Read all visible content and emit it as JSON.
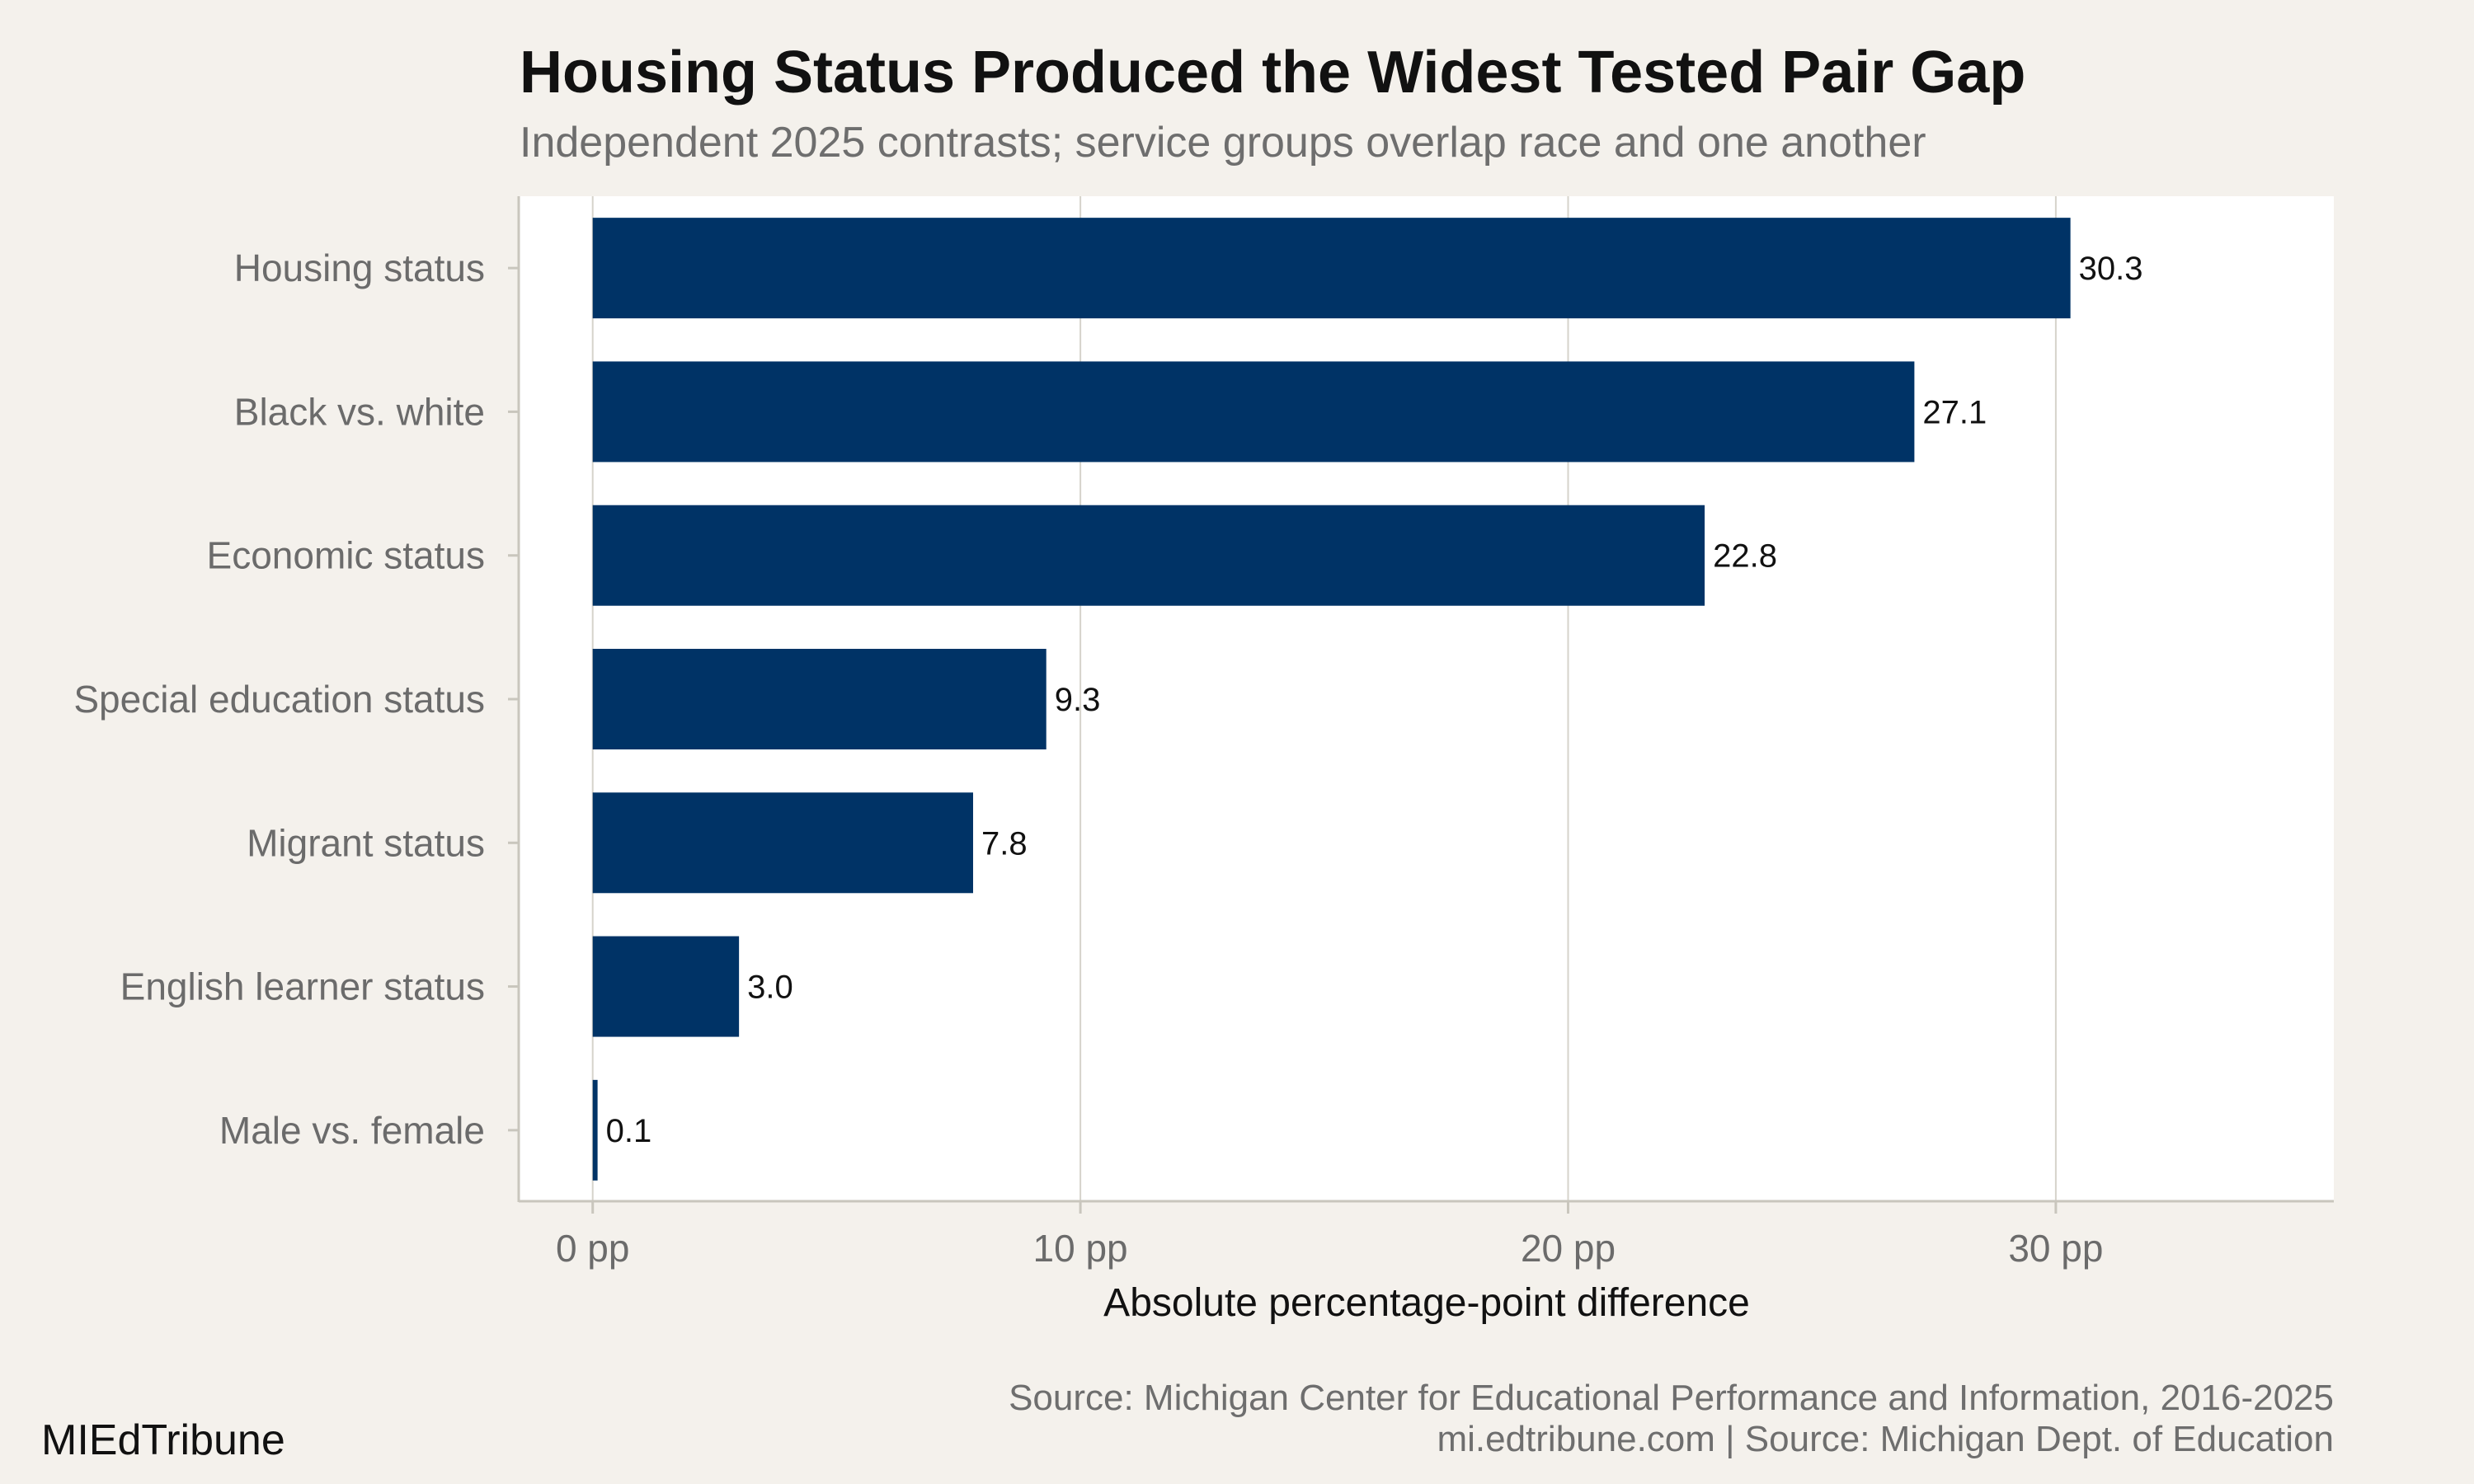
{
  "chart_data": {
    "type": "bar",
    "orientation": "horizontal",
    "title": "Housing Status Produced the Widest Tested Pair Gap",
    "subtitle": "Independent 2025 contrasts; service groups overlap race and one another",
    "xlabel": "Absolute percentage-point difference",
    "ylabel": "",
    "categories": [
      "Housing status",
      "Black vs. white",
      "Economic status",
      "Special education status",
      "Migrant status",
      "English learner status",
      "Male vs. female"
    ],
    "values": [
      30.3,
      27.1,
      22.8,
      9.3,
      7.8,
      3.0,
      0.1
    ],
    "value_labels": [
      "30.3",
      "27.1",
      "22.8",
      "9.3",
      "7.8",
      "3.0",
      "0.1"
    ],
    "xlim": [
      -1.5,
      35.7
    ],
    "x_ticks": [
      0,
      10,
      20,
      30
    ],
    "x_tick_labels": [
      "0 pp",
      "10 pp",
      "20 pp",
      "30 pp"
    ],
    "grid": "vertical",
    "bar_color": "#003366",
    "panel_color": "#ffffff",
    "background_color": "#f4f1ec"
  },
  "footer": {
    "source_line": "Source: Michigan Center for Educational Performance and Information, 2016-2025",
    "credit_line": "mi.edtribune.com | Source: Michigan Dept. of Education",
    "brand": "MIEdTribune"
  }
}
